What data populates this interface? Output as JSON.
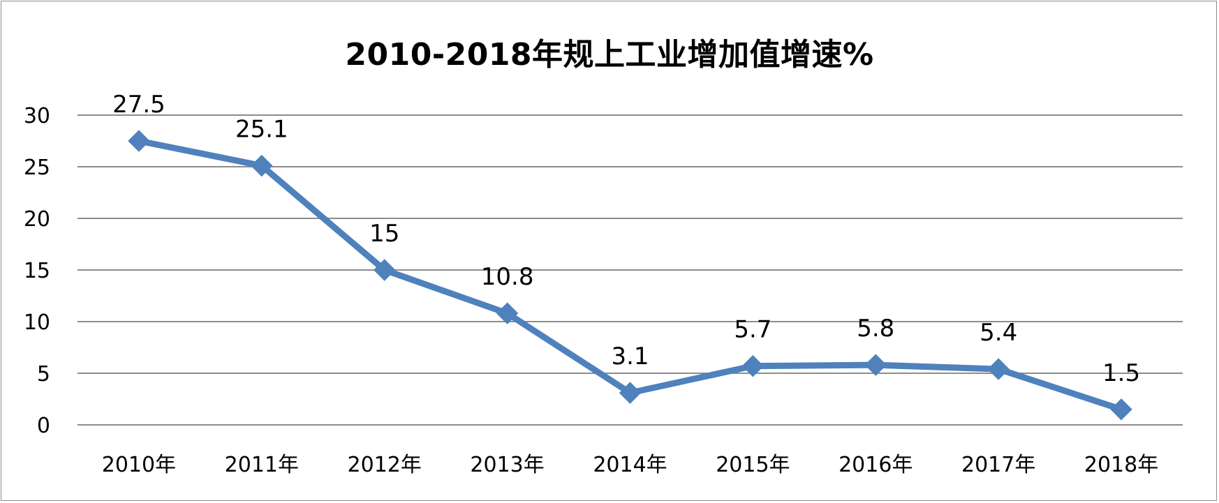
{
  "chart_data": {
    "type": "line",
    "title": "2010-2018年规上工业增加值增速%",
    "xlabel": "",
    "ylabel": "",
    "categories": [
      "2010年",
      "2011年",
      "2012年",
      "2013年",
      "2014年",
      "2015年",
      "2016年",
      "2017年",
      "2018年"
    ],
    "series": [
      {
        "values": [
          27.5,
          25.1,
          15,
          10.8,
          3.1,
          5.7,
          5.8,
          5.4,
          1.5
        ],
        "data_labels": [
          "27.5",
          "25.1",
          "15",
          "10.8",
          "3.1",
          "5.7",
          "5.8",
          "5.4",
          "1.5"
        ],
        "color": "#4F81BD",
        "marker": "diamond"
      }
    ],
    "ylim": [
      0,
      30
    ],
    "yticks": [
      0,
      5,
      10,
      15,
      20,
      25,
      30
    ],
    "ytick_labels": [
      "0",
      "5",
      "10",
      "15",
      "20",
      "25",
      "30"
    ],
    "grid": true,
    "gridline_color": "#8c8c8c",
    "legend": "none"
  }
}
